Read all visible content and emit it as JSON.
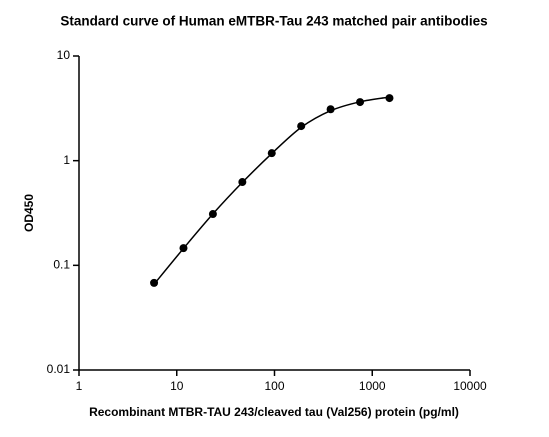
{
  "chart_data": {
    "type": "scatter",
    "title": "Standard curve of Human eMTBR-Tau 243 matched pair antibodies",
    "x_label": "Recombinant MTBR-TAU 243/cleaved tau (Val256) protein (pg/ml)",
    "y_label": "OD450",
    "x": [
      5.86,
      11.72,
      23.44,
      46.88,
      93.75,
      187.5,
      375,
      750,
      1500
    ],
    "values": [
      0.068,
      0.146,
      0.309,
      0.625,
      1.18,
      2.14,
      3.1,
      3.63,
      3.96
    ],
    "fit": {
      "x": [
        5.86,
        11.72,
        23.44,
        46.88,
        93.75,
        187.5,
        375,
        750,
        1500
      ],
      "values": [
        0.066,
        0.145,
        0.31,
        0.62,
        1.17,
        2.08,
        3.0,
        3.65,
        4.05
      ]
    },
    "color": "#000000",
    "x_log": true,
    "y_log": true,
    "xlim": [
      1,
      10000
    ],
    "xticks": [
      1,
      10,
      100,
      1000,
      10000
    ],
    "ylim": [
      0.01,
      10
    ],
    "yticks": [
      0.01,
      0.1,
      1,
      10
    ]
  }
}
